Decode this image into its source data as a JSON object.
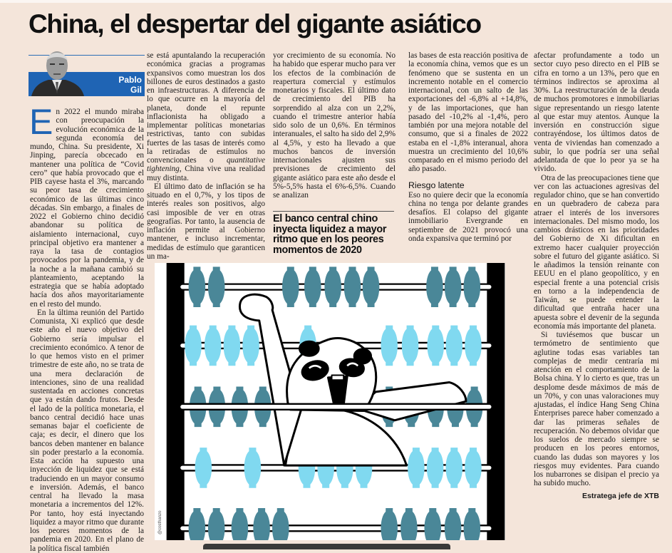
{
  "headline": "China, el despertar del gigante asiático",
  "author": {
    "first_name": "Pablo",
    "last_name": "Gil"
  },
  "colors": {
    "background": "#f4e5da",
    "accent_blue": "#1f64b4",
    "bead_dark": "#4a8798",
    "bead_light": "#80d9f0"
  },
  "column1": {
    "drop_cap": "E",
    "p1": "n 2022 el mundo miraba con preocupación la evolución económica de la segunda economía del mundo, China. Su presidente, Xi Jinping, parecía obcecado en mantener una política de “Covid cero” que había provocado que el PIB cayese hasta el 3%, marcando su peor tasa de crecimiento económico de las últimas cinco décadas. Sin embargo, a finales de 2022 el Gobierno chino decidió abandonar su política de aislamiento internacional, cuyo principal objetivo era mantener a raya la tasa de contagios provocados por la pandemia, y de la noche a la mañana cambió su planteamiento, aceptando la estrategia que se había adoptado hacía dos años mayoritariamente en el resto del mundo.",
    "p2": "En la última reunión del Partido Comunista, Xi explicó que desde este año el nuevo objetivo del Gobierno sería impulsar el crecimiento económico. A tenor de lo que hemos visto en el primer trimestre de este año, no se trata de una mera declaración de intenciones, sino de una realidad sustentada en acciones concretas que ya están dando frutos. Desde el lado de la política monetaria, el banco central decidió hace unas semanas bajar el coeficiente de caja; es decir, el dinero que los bancos deben mantener en balance sin poder prestarlo a la economía. Esta acción ha supuesto una inyección de liquidez que se está traduciendo en un mayor consumo e inversión. Además, el banco central ha llevado la masa monetaria a incrementos del 12%. Por tanto, hoy está inyectando liquidez a mayor ritmo que durante los peores momentos de la pandemia en 2020. En el plano de la política fiscal también"
  },
  "column2": {
    "p1_a": "se está apuntalando la recuperación económica gracias a programas expansivos como muestran los dos billones de euros destinados a gasto en infraestructuras. A diferencia de lo que ocurre en la mayoría del planeta, donde el repunte inflacionista ha obligado a implementar políticas monetarias restrictivas, tanto con subidas fuertes de las tasas de interés como la retiradas de estímulos no convencionales o ",
    "p1_italic": "quantitative tightening",
    "p1_b": ", China vive una realidad muy distinta.",
    "p2": "El último dato de inflación se ha situado en el 0,7%, y los tipos de interés reales son positivos, algo casi imposible de ver en otras geografías. Por tanto, la ausencia de inflación permite al Gobierno mantener, e incluso incrementar, medidas de estímulo que garanticen un ma-"
  },
  "column3": {
    "p1": "yor crecimiento de su economía. No ha habido que esperar mucho para ver los efectos de la combinación de reapertura comercial y estímulos monetarios y fiscales. El último dato de crecimiento del PIB ha sorprendido al alza con un 2,2%, cuando el trimestre anterior había sido solo de un 0,6%. En términos interanuales, el salto ha sido del 2,9% al 4,5%, y esto ha llevado a que muchos bancos de inversión internacionales ajusten sus previsiones de crecimiento del gigante asiático para este año desde el 5%-5,5% hasta el 6%-6,5%. Cuando se analizan",
    "pull_quote": "El banco central chino inyecta liquidez a mayor ritmo que en los peores momentos de 2020"
  },
  "column4": {
    "p1": "las bases de esta reacción positiva de la economía china, vemos que es un fenómeno que se sustenta en un incremento notable en el comercio internacional, con un salto de las exportaciones del -6,8% al +14,8%, y de las importaciones, que han pasado del -10,2% al -1,4%, pero también por una mejora notable del consumo, que si a finales de 2022 estaba en el -1,8% interanual, ahora muestra un crecimiento del 10,6% comparado en el mismo periodo del año pasado.",
    "section_heading": "Riesgo latente",
    "p2": "Eso no quiere decir que la economía china no tenga por delante grandes desafíos. El colapso del gigante inmobiliario Evergrande en septiembre de 2021 provocó una onda expansiva que terminó por"
  },
  "column5": {
    "p1": "afectar profundamente a todo un sector cuyo peso directo en el PIB se cifra en torno a un 13%, pero que en términos indirectos se aproxima al 30%. La reestructuración de la deuda de muchos promotores e inmobiliarias sigue representando un riesgo latente al que estar muy atentos. Aunque la inversión en construcción sigue contrayéndose, los últimos datos de venta de viviendas han comenzado a subir, lo que podría ser una señal adelantada de que lo peor ya se ha vivido.",
    "p2": "Otra de las preocupaciones tiene que ver con las actuaciones agresivas del regulador chino, que se han convertido en un quebradero de cabeza para atraer el interés de los inversores internacionales. Del mismo modo, los cambios drásticos en las prioridades del Gobierno de Xi dificultan en extremo hacer cualquier proyección sobre el futuro del gigante asiático. Si le añadimos la tensión reinante con EEUU en el plano geopolítico, y en especial frente a una potencial crisis en torno a la independencia de Taiwán, se puede entender la dificultad que entraña hacer una apuesta sobre el devenir de la segunda economía más importante del planeta.",
    "p3": "Si tuviésemos que buscar un termómetro de sentimiento que aglutine todas esas variables tan complejas de medir centraría mi atención en el comportamiento de la Bolsa china. Y lo cierto es que, tras un desplome desde máximos de más de un 70%, y con unas valoraciones muy ajustadas, el índice Hang Seng China Enterprises parece haber comenzado a dar las primeras señales de recuperación. No debemos olvidar que los suelos de mercado siempre se producen en los peores entornos, cuando las dudas son mayores y los riesgos muy evidentes. Para cuando los nubarrones se disipan el precio ya ha subido mucho.",
    "signoff": "Estratega jefe de XTB"
  },
  "illustration": {
    "credit": "@costhanzo",
    "subject": "panda-abacus"
  }
}
